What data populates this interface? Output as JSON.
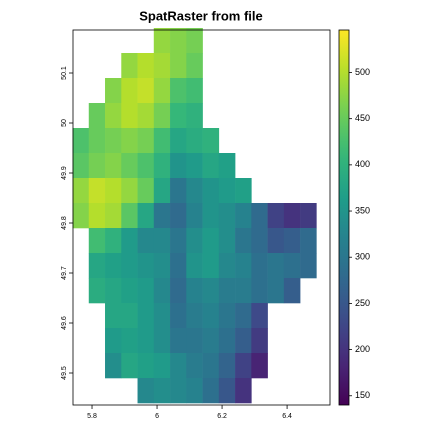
{
  "chart_data": {
    "type": "raster",
    "title": "SpatRaster from file",
    "colormap": "viridis",
    "x": [
      5.765,
      5.815,
      5.865,
      5.915,
      5.965,
      6.015,
      6.065,
      6.115,
      6.165,
      6.215,
      6.265,
      6.315,
      6.365,
      6.415,
      6.465,
      6.515
    ],
    "y": [
      50.165,
      50.115,
      50.065,
      50.015,
      49.965,
      49.915,
      49.865,
      49.815,
      49.765,
      49.715,
      49.665,
      49.615,
      49.565,
      49.515,
      49.465
    ],
    "values": [
      [
        null,
        null,
        null,
        null,
        null,
        480,
        470,
        460,
        null,
        null,
        null,
        null,
        null,
        null,
        null,
        null
      ],
      [
        null,
        null,
        null,
        480,
        500,
        490,
        470,
        450,
        null,
        null,
        null,
        null,
        null,
        null,
        null,
        null
      ],
      [
        null,
        null,
        470,
        500,
        510,
        480,
        430,
        420,
        null,
        null,
        null,
        null,
        null,
        null,
        null,
        null
      ],
      [
        null,
        450,
        480,
        500,
        490,
        460,
        410,
        400,
        null,
        null,
        null,
        null,
        null,
        null,
        null,
        null
      ],
      [
        430,
        450,
        460,
        470,
        460,
        420,
        380,
        390,
        400,
        null,
        null,
        null,
        null,
        null,
        null,
        null
      ],
      [
        440,
        460,
        470,
        450,
        430,
        400,
        350,
        360,
        380,
        370,
        null,
        null,
        null,
        null,
        null,
        null
      ],
      [
        480,
        510,
        500,
        480,
        450,
        380,
        300,
        330,
        350,
        360,
        370,
        null,
        null,
        null,
        null,
        null
      ],
      [
        470,
        500,
        490,
        440,
        380,
        300,
        280,
        320,
        350,
        340,
        320,
        280,
        220,
        200,
        210,
        null
      ],
      [
        null,
        420,
        400,
        360,
        330,
        330,
        300,
        340,
        360,
        340,
        300,
        280,
        250,
        260,
        280,
        null
      ],
      [
        null,
        380,
        370,
        360,
        350,
        340,
        290,
        350,
        360,
        330,
        320,
        290,
        300,
        290,
        280,
        null
      ],
      [
        null,
        390,
        380,
        370,
        360,
        330,
        280,
        320,
        330,
        310,
        310,
        290,
        300,
        260,
        null,
        null
      ],
      [
        null,
        null,
        380,
        380,
        360,
        340,
        290,
        310,
        320,
        300,
        280,
        230,
        null,
        null,
        null,
        null
      ],
      [
        null,
        null,
        360,
        370,
        360,
        340,
        300,
        300,
        310,
        290,
        260,
        210,
        null,
        null,
        null,
        null
      ],
      [
        null,
        null,
        340,
        380,
        370,
        360,
        330,
        310,
        300,
        270,
        220,
        180,
        null,
        null,
        null,
        null
      ],
      [
        null,
        null,
        null,
        null,
        330,
        340,
        330,
        320,
        290,
        250,
        200,
        null,
        null,
        null,
        null,
        null
      ]
    ],
    "xlim": [
      5.7415,
      6.532
    ],
    "ylim": [
      49.436,
      50.186
    ],
    "xticks": [
      5.8,
      6,
      6.2,
      6.4
    ],
    "yticks": [
      49.5,
      49.6,
      49.7,
      49.8,
      49.9,
      50,
      50.1
    ],
    "colorbar": {
      "lim": [
        140,
        546
      ],
      "ticks": [
        150,
        200,
        250,
        300,
        350,
        400,
        450,
        500
      ]
    }
  }
}
